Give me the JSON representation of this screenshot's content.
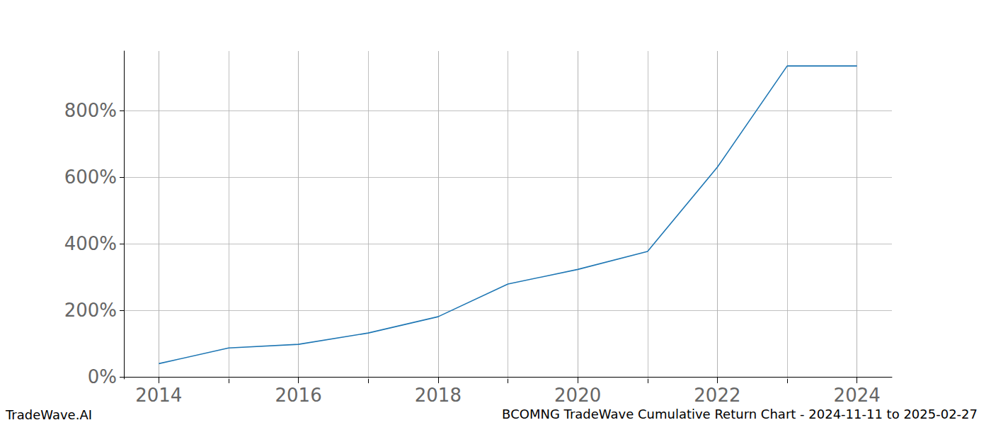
{
  "chart_data": {
    "type": "line",
    "title": "BCOMNG TradeWave Cumulative Return Chart - 2024-11-11 to 2025-02-27",
    "annotations": [
      {
        "text": "TradeWave.AI"
      }
    ],
    "x": [
      2014,
      2015,
      2016,
      2017,
      2018,
      2019,
      2020,
      2021,
      2022,
      2023,
      2024
    ],
    "series": [
      {
        "name": "BCOMNG",
        "color": "#1f77b4",
        "values": [
          40,
          87,
          98,
          132,
          181,
          279,
          323,
          377,
          630,
          934,
          934
        ]
      }
    ],
    "xlim": [
      2013.5,
      2024.5
    ],
    "xticks": [
      2014,
      2016,
      2018,
      2020,
      2022,
      2024
    ],
    "ylim": [
      -6,
      979
    ],
    "yticks": [
      {
        "value": 0,
        "label": "0%"
      },
      {
        "value": 200,
        "label": "200%"
      },
      {
        "value": 400,
        "label": "400%"
      },
      {
        "value": 600,
        "label": "600%"
      },
      {
        "value": 800,
        "label": "800%"
      }
    ],
    "grid": true
  }
}
